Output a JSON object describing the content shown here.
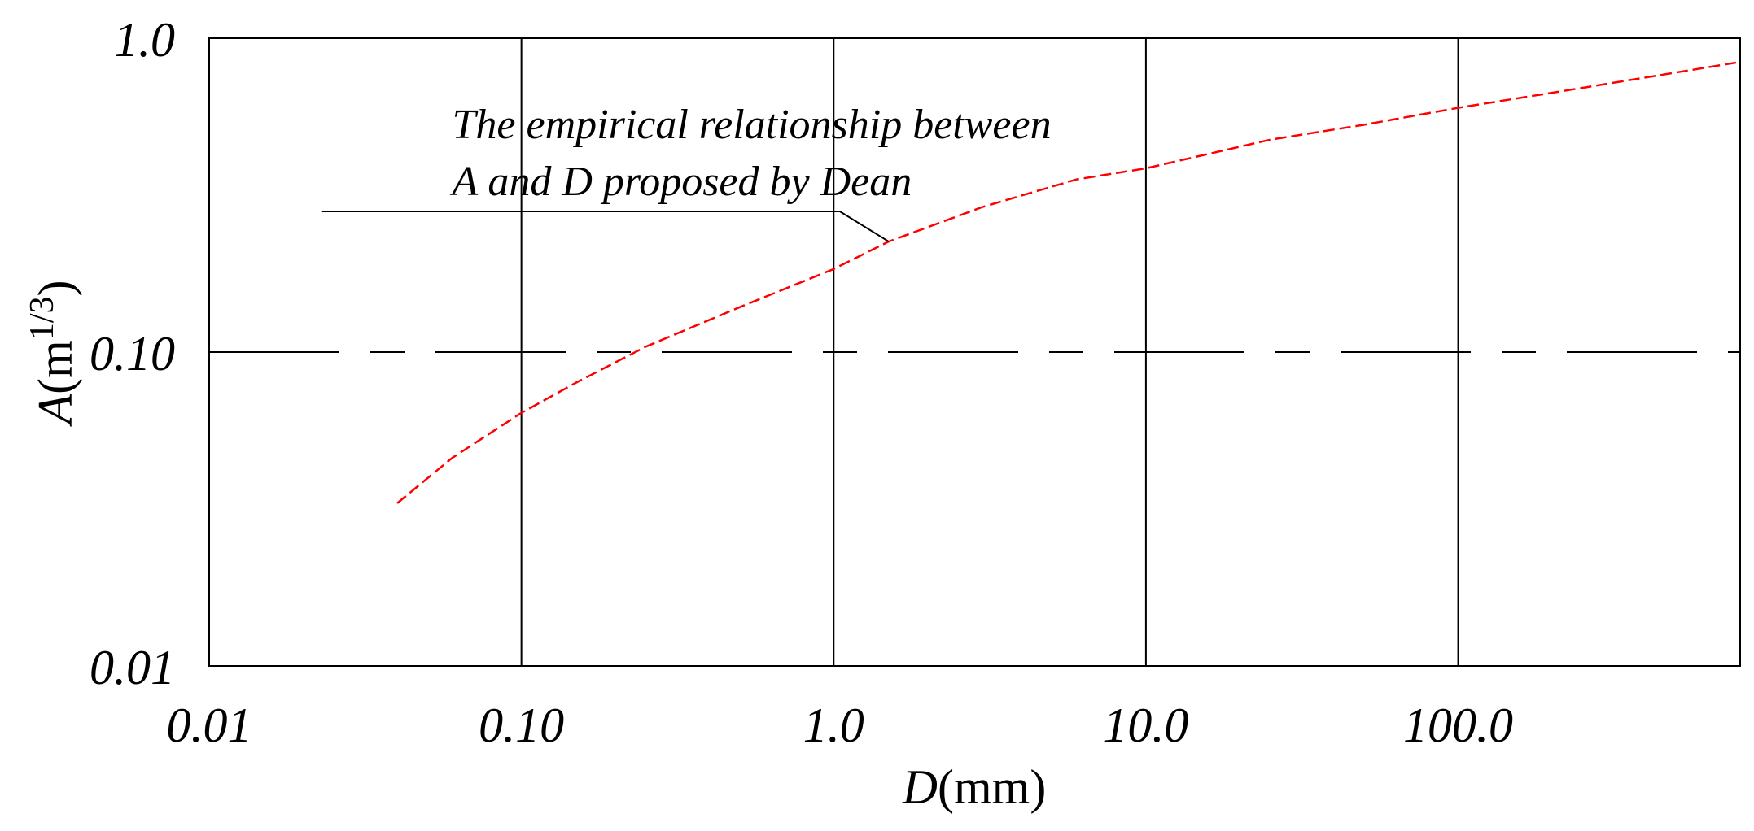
{
  "chart_data": {
    "type": "line",
    "x_scale": "log",
    "y_scale": "log",
    "xlim": [
      0.01,
      800
    ],
    "ylim": [
      0.01,
      1.0
    ],
    "x_ticks": [
      0.01,
      0.1,
      1,
      10,
      100
    ],
    "x_tick_labels": [
      "0.01",
      "0.10",
      "1.0",
      "10.0",
      "100.0"
    ],
    "y_ticks": [
      0.01,
      0.1,
      1.0
    ],
    "y_tick_labels": [
      "0.01",
      "0.10",
      "1.0"
    ],
    "xlabel": {
      "italic": "D",
      "rest": "(mm)"
    },
    "ylabel": {
      "italic": "A",
      "rest": "(m",
      "sup": "1/3",
      "close": ")"
    },
    "grid": true,
    "series": [
      {
        "color": "#ff0000",
        "line_style": "dashed",
        "x": [
          0.04,
          0.06,
          0.1,
          0.15,
          0.25,
          0.5,
          1.0,
          1.5,
          3,
          6,
          10,
          25,
          50,
          100,
          200,
          400,
          800
        ],
        "y": [
          0.033,
          0.046,
          0.064,
          0.08,
          0.104,
          0.139,
          0.184,
          0.225,
          0.29,
          0.355,
          0.385,
          0.475,
          0.53,
          0.6,
          0.67,
          0.75,
          0.84
        ]
      }
    ],
    "annotations": [
      {
        "lines": [
          "The empirical relationship between",
          "A and D proposed by Dean"
        ],
        "points_to": {
          "x": 1.5,
          "y": 0.225
        }
      }
    ]
  }
}
